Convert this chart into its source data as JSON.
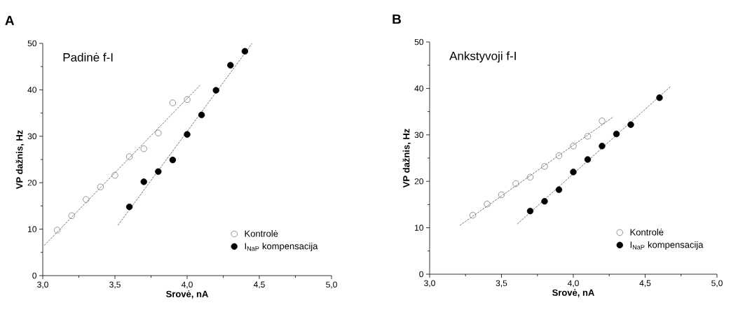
{
  "chart_data": [
    {
      "type": "scatter",
      "title": "A",
      "annotations": [
        "Padinė f-I"
      ],
      "xlabel": "Srovė, nA",
      "ylabel": "VP dažnis, Hz",
      "xlim": [
        3.0,
        5.0
      ],
      "ylim": [
        0,
        50
      ],
      "xticks": [
        {
          "value": 3.0,
          "label": "3,0"
        },
        {
          "value": 3.5,
          "label": "3,5"
        },
        {
          "value": 4.0,
          "label": "4,0"
        },
        {
          "value": 4.5,
          "label": "4,5"
        },
        {
          "value": 5.0,
          "label": "5,0"
        }
      ],
      "yticks": [
        0,
        10,
        20,
        30,
        40,
        50
      ],
      "legend": "bottom right",
      "marker": "circle",
      "series": [
        {
          "name": "Kontrolė",
          "color": "#7a7a7a",
          "x": [
            3.1,
            3.2,
            3.3,
            3.4,
            3.5,
            3.6,
            3.7,
            3.8,
            3.9,
            4.0
          ],
          "values": [
            9.8,
            12.9,
            16.4,
            19.1,
            21.6,
            25.6,
            27.3,
            30.7,
            37.2,
            37.9
          ]
        },
        {
          "name": "I$_{NaP}$ kompensacija",
          "color": "#000000",
          "x": [
            3.6,
            3.7,
            3.8,
            3.9,
            4.0,
            4.1,
            4.2,
            4.3,
            4.4
          ],
          "values": [
            14.8,
            20.2,
            22.4,
            24.9,
            30.4,
            34.6,
            39.9,
            45.3,
            48.3
          ]
        },
        {
          "type": "line",
          "line_style": "dashed",
          "marker": "none",
          "color": "#505050",
          "x": [
            3.01,
            4.09
          ],
          "values": [
            6.5,
            41.0
          ]
        },
        {
          "type": "line",
          "line_style": "dashed",
          "marker": "none",
          "color": "#505050",
          "x": [
            3.52,
            4.45
          ],
          "values": [
            10.8,
            50.0
          ]
        }
      ]
    },
    {
      "type": "scatter",
      "title": "B",
      "annotations": [
        "Ankstyvoji f-I"
      ],
      "xlabel": "Srovė, nA",
      "ylabel": "VP dažnis, Hz",
      "xlim": [
        3.0,
        5.0
      ],
      "ylim": [
        0,
        50
      ],
      "xticks": [
        {
          "value": 3.0,
          "label": "3,0"
        },
        {
          "value": 3.5,
          "label": "3,5"
        },
        {
          "value": 4.0,
          "label": "4,0"
        },
        {
          "value": 4.5,
          "label": "4,5"
        },
        {
          "value": 5.0,
          "label": "5,0"
        }
      ],
      "yticks": [
        0,
        10,
        20,
        30,
        40,
        50
      ],
      "legend": "bottom right",
      "marker": "circle",
      "series": [
        {
          "name": "Kontrolė",
          "color": "#7a7a7a",
          "x": [
            3.3,
            3.4,
            3.5,
            3.6,
            3.7,
            3.8,
            3.9,
            4.0,
            4.1,
            4.2
          ],
          "values": [
            12.7,
            15.1,
            17.1,
            19.5,
            20.9,
            23.2,
            25.5,
            27.6,
            29.7,
            33.0
          ]
        },
        {
          "name": "I$_{NaP}$ kompensacija",
          "color": "#000000",
          "x": [
            3.7,
            3.8,
            3.9,
            4.0,
            4.1,
            4.2,
            4.3,
            4.4,
            4.6
          ],
          "values": [
            13.6,
            15.7,
            18.2,
            22.0,
            24.7,
            27.6,
            30.2,
            32.2,
            38.0
          ]
        },
        {
          "type": "line",
          "line_style": "dashed",
          "marker": "none",
          "color": "#505050",
          "x": [
            3.21,
            4.28
          ],
          "values": [
            10.5,
            33.9
          ]
        },
        {
          "type": "line",
          "line_style": "dashed",
          "marker": "none",
          "color": "#505050",
          "x": [
            3.61,
            4.68
          ],
          "values": [
            10.8,
            40.5
          ]
        }
      ]
    }
  ]
}
